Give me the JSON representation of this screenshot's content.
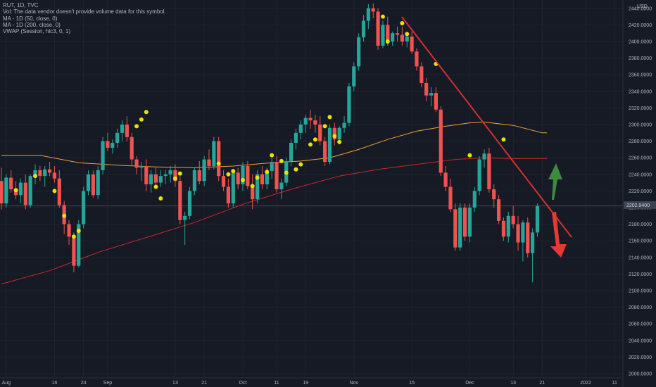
{
  "header": {
    "symbol_line": "RUT, 1D, TVC",
    "vol_note": "Vol: The data vendor doesn't provide volume data for this symbol.",
    "ma50_label": "MA - 1D (50, close, 0)",
    "ma200_label": "MA - 1D (200, close, 0)",
    "vwap_label": "VWAP (Session, hlc3, 0, 1)",
    "currency": "USD",
    "price_badge": "2202.9400"
  },
  "colors": {
    "background": "#161a25",
    "up": "#26a69a",
    "down": "#ef5350",
    "ma50": "#f0a03a",
    "ma200": "#c62828",
    "vwap_dot": "#e8e10a",
    "trendline": "#d32f2f",
    "arrow_up": "#3d8b3d",
    "arrow_down": "#e53935"
  },
  "chart_data": {
    "type": "candlestick",
    "y_axis": {
      "min": 1990,
      "max": 2446,
      "ticks": [
        2000,
        2020,
        2040,
        2060,
        2080,
        2100,
        2120,
        2140,
        2160,
        2180,
        2200,
        2220,
        2240,
        2260,
        2280,
        2300,
        2320,
        2340,
        2360,
        2380,
        2400,
        2420,
        2440
      ],
      "tick_labels": [
        "2000.0000",
        "2020.0000",
        "2040.0000",
        "2060.0000",
        "2080.0000",
        "2100.0000",
        "2120.0000",
        "2140.0000",
        "2160.0000",
        "2180.0000",
        "2200.0000",
        "2220.0000",
        "2240.0000",
        "2260.0000",
        "2280.0000",
        "2300.0000",
        "2320.0000",
        "2340.0000",
        "2360.0000",
        "2380.0000",
        "2400.0000",
        "2420.0000",
        "2440.0000"
      ]
    },
    "x_axis": {
      "labels": [
        {
          "text": "Aug",
          "i": 1
        },
        {
          "text": "16",
          "i": 11
        },
        {
          "text": "24",
          "i": 17
        },
        {
          "text": "Sep",
          "i": 22
        },
        {
          "text": "13",
          "i": 36
        },
        {
          "text": "21",
          "i": 42
        },
        {
          "text": "Oct",
          "i": 50
        },
        {
          "text": "11",
          "i": 57
        },
        {
          "text": "19",
          "i": 63
        },
        {
          "text": "Nov",
          "i": 73
        },
        {
          "text": "15",
          "i": 85
        },
        {
          "text": "Dec",
          "i": 97
        },
        {
          "text": "13",
          "i": 106
        },
        {
          "text": "21",
          "i": 112
        },
        {
          "text": "2022",
          "i": 121
        },
        {
          "text": "11",
          "i": 127
        }
      ]
    },
    "candles": [
      [
        2232,
        2248,
        2198,
        2205
      ],
      [
        2205,
        2240,
        2200,
        2236
      ],
      [
        2236,
        2245,
        2218,
        2222
      ],
      [
        2222,
        2232,
        2210,
        2215
      ],
      [
        2215,
        2235,
        2205,
        2230
      ],
      [
        2230,
        2240,
        2198,
        2203
      ],
      [
        2203,
        2240,
        2200,
        2238
      ],
      [
        2238,
        2252,
        2228,
        2245
      ],
      [
        2245,
        2250,
        2232,
        2238
      ],
      [
        2238,
        2250,
        2225,
        2246
      ],
      [
        2246,
        2255,
        2238,
        2242
      ],
      [
        2242,
        2250,
        2230,
        2235
      ],
      [
        2235,
        2245,
        2200,
        2203
      ],
      [
        2203,
        2208,
        2168,
        2180
      ],
      [
        2180,
        2185,
        2155,
        2165
      ],
      [
        2165,
        2170,
        2122,
        2130
      ],
      [
        2130,
        2185,
        2128,
        2180
      ],
      [
        2180,
        2225,
        2175,
        2220
      ],
      [
        2220,
        2245,
        2215,
        2240
      ],
      [
        2240,
        2245,
        2212,
        2215
      ],
      [
        2215,
        2250,
        2210,
        2245
      ],
      [
        2245,
        2285,
        2240,
        2280
      ],
      [
        2280,
        2290,
        2268,
        2272
      ],
      [
        2272,
        2282,
        2265,
        2278
      ],
      [
        2278,
        2295,
        2272,
        2290
      ],
      [
        2290,
        2305,
        2280,
        2300
      ],
      [
        2300,
        2310,
        2280,
        2285
      ],
      [
        2285,
        2290,
        2250,
        2258
      ],
      [
        2258,
        2262,
        2240,
        2248
      ],
      [
        2248,
        2255,
        2232,
        2250
      ],
      [
        2250,
        2258,
        2220,
        2228
      ],
      [
        2228,
        2245,
        2218,
        2240
      ],
      [
        2240,
        2248,
        2225,
        2230
      ],
      [
        2230,
        2245,
        2225,
        2238
      ],
      [
        2238,
        2245,
        2228,
        2240
      ],
      [
        2240,
        2250,
        2230,
        2245
      ],
      [
        2245,
        2252,
        2225,
        2232
      ],
      [
        2232,
        2238,
        2180,
        2185
      ],
      [
        2185,
        2195,
        2155,
        2190
      ],
      [
        2190,
        2225,
        2186,
        2220
      ],
      [
        2220,
        2248,
        2215,
        2245
      ],
      [
        2245,
        2256,
        2228,
        2232
      ],
      [
        2232,
        2262,
        2226,
        2258
      ],
      [
        2258,
        2270,
        2245,
        2250
      ],
      [
        2250,
        2285,
        2246,
        2280
      ],
      [
        2280,
        2285,
        2232,
        2238
      ],
      [
        2238,
        2245,
        2220,
        2225
      ],
      [
        2225,
        2235,
        2200,
        2205
      ],
      [
        2205,
        2245,
        2200,
        2242
      ],
      [
        2242,
        2248,
        2222,
        2228
      ],
      [
        2228,
        2255,
        2220,
        2250
      ],
      [
        2250,
        2256,
        2222,
        2226
      ],
      [
        2226,
        2240,
        2198,
        2210
      ],
      [
        2210,
        2245,
        2205,
        2240
      ],
      [
        2240,
        2250,
        2222,
        2228
      ],
      [
        2228,
        2248,
        2222,
        2244
      ],
      [
        2244,
        2260,
        2235,
        2255
      ],
      [
        2255,
        2262,
        2218,
        2222
      ],
      [
        2222,
        2235,
        2210,
        2230
      ],
      [
        2230,
        2260,
        2226,
        2256
      ],
      [
        2256,
        2282,
        2250,
        2278
      ],
      [
        2278,
        2295,
        2270,
        2290
      ],
      [
        2290,
        2305,
        2282,
        2300
      ],
      [
        2300,
        2312,
        2290,
        2308
      ],
      [
        2308,
        2318,
        2295,
        2305
      ],
      [
        2305,
        2312,
        2290,
        2300
      ],
      [
        2300,
        2310,
        2275,
        2280
      ],
      [
        2280,
        2285,
        2250,
        2255
      ],
      [
        2255,
        2300,
        2252,
        2296
      ],
      [
        2296,
        2302,
        2275,
        2282
      ],
      [
        2282,
        2298,
        2276,
        2296
      ],
      [
        2296,
        2310,
        2290,
        2302
      ],
      [
        2302,
        2350,
        2298,
        2346
      ],
      [
        2346,
        2375,
        2340,
        2370
      ],
      [
        2370,
        2410,
        2365,
        2405
      ],
      [
        2405,
        2432,
        2400,
        2425
      ],
      [
        2425,
        2445,
        2415,
        2440
      ],
      [
        2440,
        2446,
        2428,
        2436
      ],
      [
        2436,
        2440,
        2390,
        2395
      ],
      [
        2395,
        2425,
        2392,
        2420
      ],
      [
        2420,
        2430,
        2395,
        2400
      ],
      [
        2400,
        2412,
        2395,
        2410
      ],
      [
        2410,
        2418,
        2400,
        2408
      ],
      [
        2408,
        2418,
        2395,
        2400
      ],
      [
        2400,
        2412,
        2393,
        2406
      ],
      [
        2406,
        2412,
        2385,
        2388
      ],
      [
        2388,
        2392,
        2365,
        2370
      ],
      [
        2370,
        2375,
        2345,
        2350
      ],
      [
        2350,
        2356,
        2328,
        2335
      ],
      [
        2335,
        2345,
        2322,
        2338
      ],
      [
        2338,
        2345,
        2315,
        2318
      ],
      [
        2318,
        2322,
        2238,
        2242
      ],
      [
        2242,
        2250,
        2220,
        2225
      ],
      [
        2225,
        2235,
        2195,
        2198
      ],
      [
        2198,
        2205,
        2148,
        2152
      ],
      [
        2152,
        2205,
        2148,
        2200
      ],
      [
        2200,
        2205,
        2160,
        2165
      ],
      [
        2165,
        2205,
        2158,
        2200
      ],
      [
        2200,
        2225,
        2195,
        2220
      ],
      [
        2220,
        2262,
        2215,
        2258
      ],
      [
        2258,
        2270,
        2248,
        2265
      ],
      [
        2265,
        2272,
        2218,
        2222
      ],
      [
        2222,
        2228,
        2200,
        2210
      ],
      [
        2210,
        2215,
        2180,
        2184
      ],
      [
        2184,
        2188,
        2160,
        2165
      ],
      [
        2165,
        2195,
        2158,
        2190
      ],
      [
        2190,
        2202,
        2175,
        2180
      ],
      [
        2180,
        2190,
        2148,
        2158
      ],
      [
        2158,
        2185,
        2135,
        2182
      ],
      [
        2182,
        2188,
        2140,
        2145
      ],
      [
        2145,
        2175,
        2110,
        2170
      ],
      [
        2170,
        2205,
        2165,
        2202
      ]
    ],
    "ma50": [
      [
        0,
        2263
      ],
      [
        8,
        2263
      ],
      [
        16,
        2254
      ],
      [
        24,
        2251
      ],
      [
        32,
        2249
      ],
      [
        40,
        2248
      ],
      [
        48,
        2250
      ],
      [
        56,
        2254
      ],
      [
        62,
        2256
      ],
      [
        68,
        2260
      ],
      [
        74,
        2270
      ],
      [
        80,
        2282
      ],
      [
        86,
        2292
      ],
      [
        92,
        2298
      ],
      [
        97,
        2302
      ],
      [
        100,
        2303
      ],
      [
        106,
        2299
      ],
      [
        112,
        2290
      ],
      [
        113,
        2290
      ]
    ],
    "ma200": [
      [
        0,
        2108
      ],
      [
        10,
        2124
      ],
      [
        20,
        2146
      ],
      [
        30,
        2164
      ],
      [
        40,
        2182
      ],
      [
        50,
        2204
      ],
      [
        60,
        2222
      ],
      [
        70,
        2238
      ],
      [
        78,
        2246
      ],
      [
        86,
        2252
      ],
      [
        94,
        2258
      ],
      [
        100,
        2260
      ],
      [
        106,
        2259
      ],
      [
        113,
        2259
      ]
    ],
    "vwap_markers": [
      {
        "i": 3,
        "price": 2221
      },
      {
        "i": 7,
        "price": 2238
      },
      {
        "i": 11,
        "price": 2220
      },
      {
        "i": 13,
        "price": 2190
      },
      {
        "i": 15,
        "price": 2165
      },
      {
        "i": 16,
        "price": 2172
      },
      {
        "i": 28,
        "price": 2298
      },
      {
        "i": 29,
        "price": 2306
      },
      {
        "i": 30,
        "price": 2315
      },
      {
        "i": 32,
        "price": 2225
      },
      {
        "i": 33,
        "price": 2211
      },
      {
        "i": 36,
        "price": 2235
      },
      {
        "i": 37,
        "price": 2241
      },
      {
        "i": 45,
        "price": 2253
      },
      {
        "i": 47,
        "price": 2240
      },
      {
        "i": 48,
        "price": 2244
      },
      {
        "i": 50,
        "price": 2233
      },
      {
        "i": 52,
        "price": 2226
      },
      {
        "i": 53,
        "price": 2236
      },
      {
        "i": 55,
        "price": 2243
      },
      {
        "i": 56,
        "price": 2263
      },
      {
        "i": 58,
        "price": 2256
      },
      {
        "i": 59,
        "price": 2242
      },
      {
        "i": 61,
        "price": 2246
      },
      {
        "i": 62,
        "price": 2252
      },
      {
        "i": 64,
        "price": 2276
      },
      {
        "i": 65,
        "price": 2282
      },
      {
        "i": 67,
        "price": 2298
      },
      {
        "i": 68,
        "price": 2309
      },
      {
        "i": 69,
        "price": 2286
      },
      {
        "i": 70,
        "price": 2279
      },
      {
        "i": 79,
        "price": 2430
      },
      {
        "i": 80,
        "price": 2400
      },
      {
        "i": 83,
        "price": 2422
      },
      {
        "i": 84,
        "price": 2409
      },
      {
        "i": 90,
        "price": 2373
      },
      {
        "i": 97,
        "price": 2263
      },
      {
        "i": 104,
        "price": 2282
      }
    ]
  }
}
